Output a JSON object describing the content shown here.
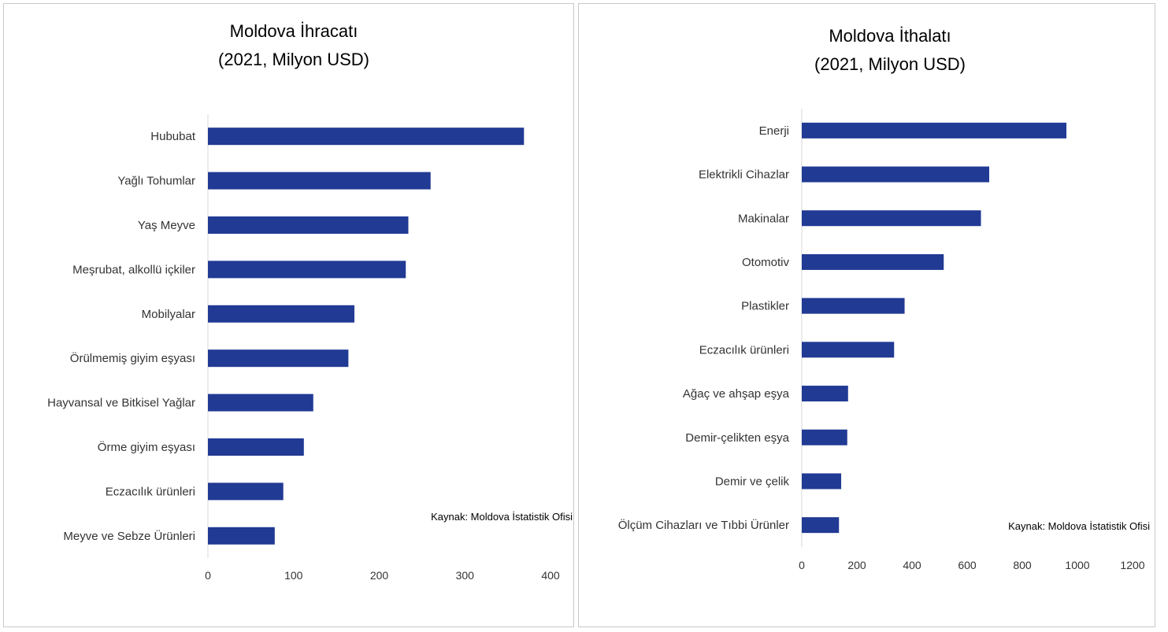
{
  "chart_data": [
    {
      "type": "bar",
      "orientation": "horizontal",
      "title": "Moldova İhracatı",
      "subtitle": "(2021, Milyon USD)",
      "categories": [
        "Hububat",
        "Yağlı Tohumlar",
        "Yaş Meyve",
        "Meşrubat, alkollü içkiler",
        "Mobilyalar",
        "Örülmemiş giyim eşyası",
        "Hayvansal ve Bitkisel Yağlar",
        "Örme giyim eşyası",
        "Eczacılık ürünleri",
        "Meyve ve Sebze Ürünleri"
      ],
      "values": [
        369,
        260,
        234,
        231,
        171,
        164,
        123,
        112,
        88,
        78
      ],
      "xlim": [
        0,
        400
      ],
      "ticks": [
        "0",
        "100",
        "200",
        "300",
        "400"
      ],
      "grid": false,
      "legend": "none",
      "bar_color": "#213a94",
      "annotation": "Kaynak: Moldova İstatistik Ofisi"
    },
    {
      "type": "bar",
      "orientation": "horizontal",
      "title": "Moldova İthalatı",
      "subtitle": "(2021, Milyon USD)",
      "categories": [
        "Enerji",
        "Elektrikli Cihazlar",
        "Makinalar",
        "Otomotiv",
        "Plastikler",
        "Eczacılık ürünleri",
        "Ağaç ve ahşap eşya",
        "Demir-çelikten eşya",
        "Demir ve çelik",
        "Ölçüm Cihazları ve Tıbbi Ürünler"
      ],
      "values": [
        960,
        680,
        650,
        515,
        373,
        335,
        168,
        165,
        143,
        135
      ],
      "xlim": [
        0,
        1200
      ],
      "ticks": [
        "0",
        "200",
        "400",
        "600",
        "800",
        "1000",
        "1200"
      ],
      "grid": false,
      "legend": "none",
      "bar_color": "#213a94",
      "annotation": "Kaynak: Moldova İstatistik Ofisi"
    }
  ]
}
